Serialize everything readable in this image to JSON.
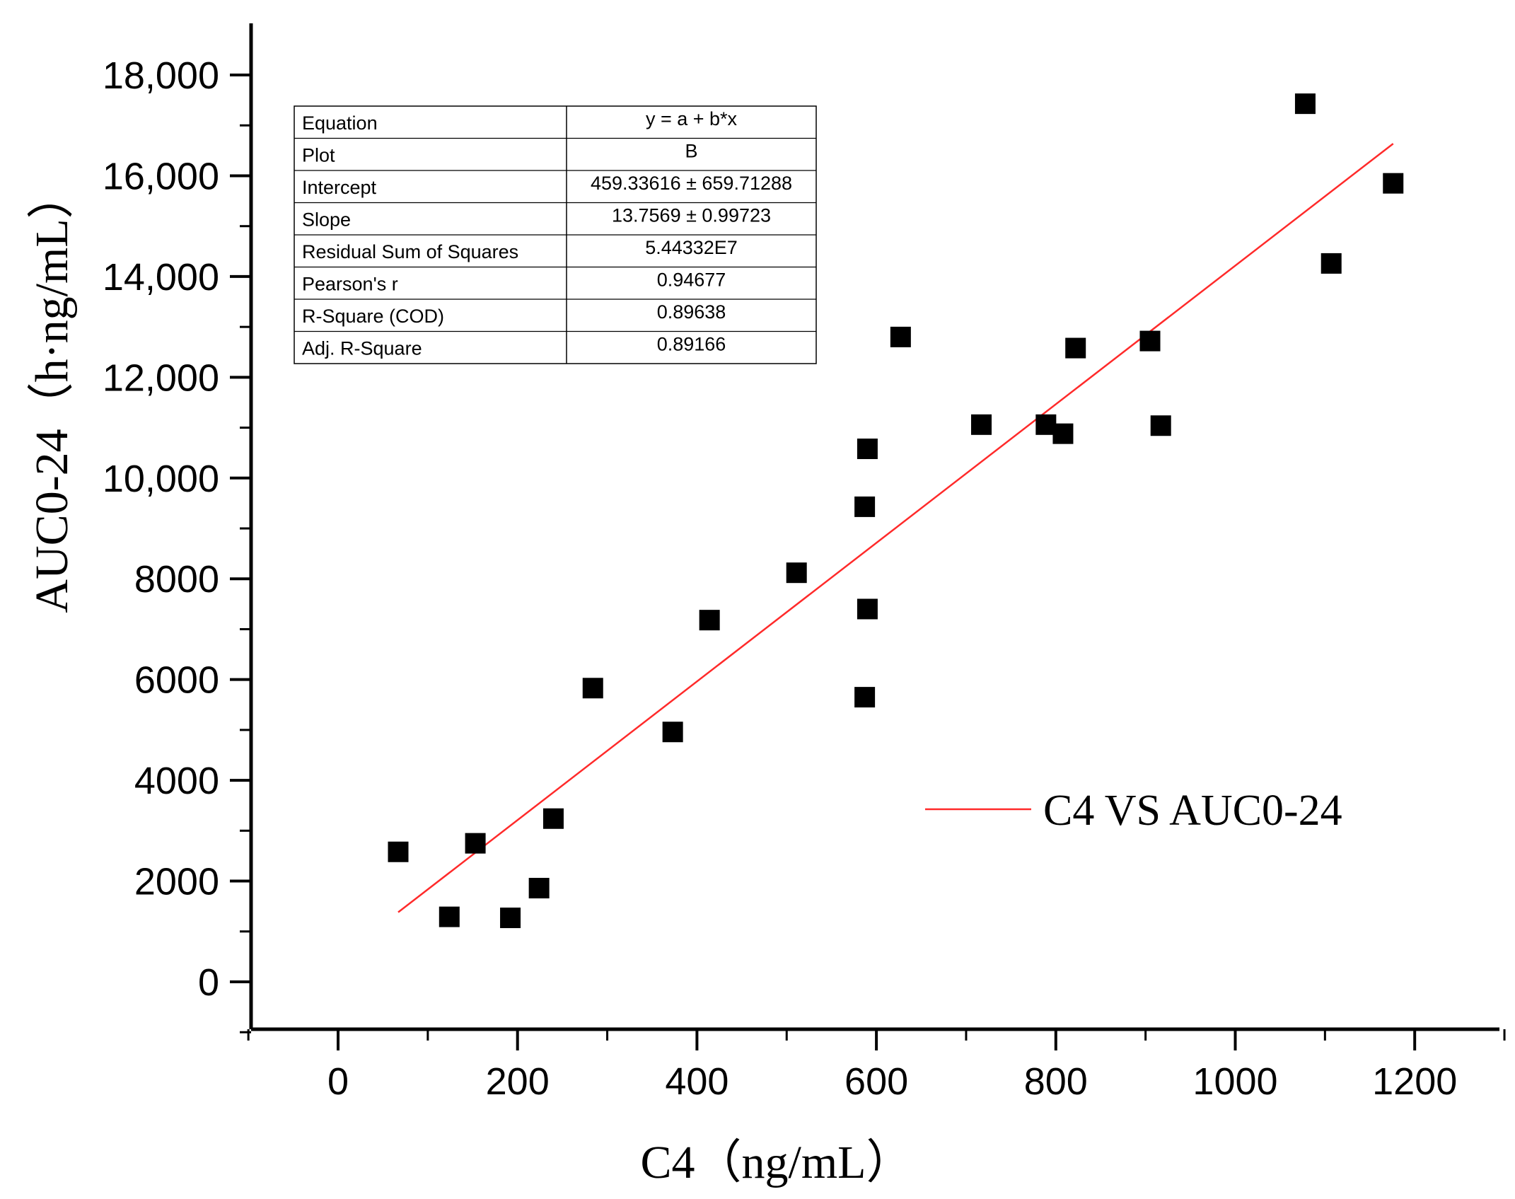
{
  "chart_data": {
    "type": "scatter",
    "title": "",
    "xlabel": "C4（ng/mL）",
    "ylabel": "AUC0-24（h·ng/mL）",
    "xlim": [
      -100,
      1300
    ],
    "ylim": [
      -1000,
      19000
    ],
    "x_ticks": [
      0,
      200,
      400,
      600,
      800,
      1000,
      1200
    ],
    "x_tick_labels": [
      "0",
      "200",
      "400",
      "600",
      "800",
      "1000",
      "1200"
    ],
    "y_ticks": [
      0,
      2000,
      4000,
      6000,
      8000,
      10000,
      12000,
      14000,
      16000,
      18000
    ],
    "y_tick_labels": [
      "0",
      "2000",
      "4000",
      "6000",
      "8000",
      "10,000",
      "12,000",
      "14,000",
      "16,000",
      "18,000"
    ],
    "series": [
      {
        "name": "scatter",
        "marker": "square",
        "color": "#000000",
        "points": [
          {
            "x": 67,
            "y": 2580
          },
          {
            "x": 124,
            "y": 1290
          },
          {
            "x": 153,
            "y": 2750
          },
          {
            "x": 192,
            "y": 1270
          },
          {
            "x": 224,
            "y": 1860
          },
          {
            "x": 240,
            "y": 3240
          },
          {
            "x": 284,
            "y": 5830
          },
          {
            "x": 373,
            "y": 4960
          },
          {
            "x": 414,
            "y": 7180
          },
          {
            "x": 511,
            "y": 8120
          },
          {
            "x": 587,
            "y": 5650
          },
          {
            "x": 587,
            "y": 9430
          },
          {
            "x": 590,
            "y": 7400
          },
          {
            "x": 590,
            "y": 10580
          },
          {
            "x": 627,
            "y": 12800
          },
          {
            "x": 717,
            "y": 11060
          },
          {
            "x": 789,
            "y": 11060
          },
          {
            "x": 808,
            "y": 10880
          },
          {
            "x": 822,
            "y": 12580
          },
          {
            "x": 905,
            "y": 12720
          },
          {
            "x": 917,
            "y": 11040
          },
          {
            "x": 1078,
            "y": 17430
          },
          {
            "x": 1107,
            "y": 14260
          },
          {
            "x": 1176,
            "y": 15850
          }
        ]
      },
      {
        "name": "C4 VS AUC0-24",
        "type": "line",
        "color": "#ff2a2a",
        "x": [
          67,
          1176
        ],
        "intercept": 459.33616,
        "slope": 13.7569
      }
    ],
    "legend": {
      "position": "right",
      "entries": [
        "C4 VS AUC0-24"
      ]
    },
    "stats_table": {
      "rows": [
        {
          "label": "Equation",
          "value": "y = a + b*x"
        },
        {
          "label": "Plot",
          "value": "B"
        },
        {
          "label": "Intercept",
          "value": "459.33616 ± 659.71288"
        },
        {
          "label": "Slope",
          "value": "13.7569 ± 0.99723"
        },
        {
          "label": "Residual Sum of Squares",
          "value": "5.44332E7"
        },
        {
          "label": "Pearson's r",
          "value": "0.94677"
        },
        {
          "label": "R-Square (COD)",
          "value": "0.89638"
        },
        {
          "label": "Adj. R-Square",
          "value": "0.89166"
        }
      ]
    }
  }
}
